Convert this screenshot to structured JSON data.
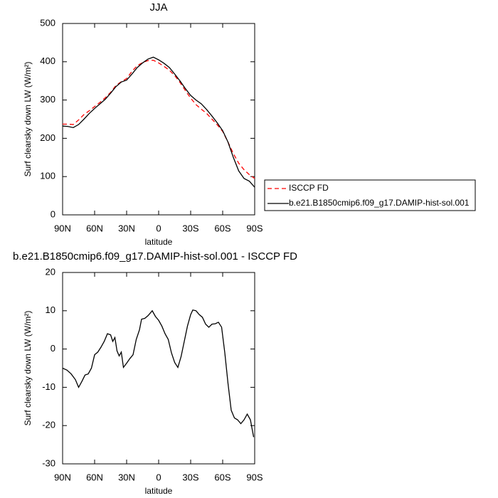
{
  "chart_data": [
    {
      "type": "line",
      "title": "JJA",
      "xlabel": "latitude",
      "ylabel": "Surf clearsky down LW (W/m²)",
      "x": [
        90,
        85,
        80,
        75,
        70,
        65,
        60,
        55,
        50,
        45,
        40,
        35,
        30,
        25,
        20,
        15,
        10,
        5,
        0,
        -5,
        -10,
        -15,
        -20,
        -25,
        -30,
        -35,
        -40,
        -45,
        -50,
        -55,
        -60,
        -65,
        -70,
        -75,
        -80,
        -85,
        -90
      ],
      "series": [
        {
          "name": "ISCCP FD",
          "color": "#ff0000",
          "linestyle": "dashed",
          "values": [
            237,
            237,
            236,
            248,
            262,
            272,
            283,
            294,
            306,
            320,
            338,
            348,
            356,
            375,
            390,
            398,
            403,
            404,
            397,
            388,
            378,
            364,
            346,
            325,
            305,
            288,
            276,
            265,
            250,
            235,
            218,
            190,
            160,
            135,
            118,
            105,
            95
          ]
        },
        {
          "name": "b.e21.B1850cmip6.f09_g17.DAMIP-hist-sol.001",
          "color": "#000000",
          "linestyle": "solid",
          "values": [
            232,
            231,
            228,
            236,
            250,
            265,
            278,
            290,
            302,
            318,
            335,
            347,
            352,
            368,
            385,
            397,
            407,
            412,
            405,
            396,
            385,
            368,
            350,
            330,
            312,
            300,
            290,
            275,
            258,
            240,
            220,
            190,
            150,
            115,
            95,
            88,
            72
          ]
        }
      ],
      "xlim": [
        90,
        -90
      ],
      "xticks": [
        {
          "value": 90,
          "label": "90N"
        },
        {
          "value": 60,
          "label": "60N"
        },
        {
          "value": 30,
          "label": "30N"
        },
        0,
        {
          "value": -30,
          "label": "30S"
        },
        {
          "value": -60,
          "label": "60S"
        },
        {
          "value": -90,
          "label": "90S"
        }
      ],
      "ylim": [
        0,
        500
      ],
      "yticks": [
        0,
        100,
        200,
        300,
        400,
        500
      ],
      "legend": "outside-right"
    },
    {
      "type": "line",
      "title": "b.e21.B1850cmip6.f09_g17.DAMIP-hist-sol.001 - ISCCP FD",
      "xlabel": "latitude",
      "ylabel": "Surf clearsky down LW (W/m²)",
      "x": [
        90,
        86,
        82,
        78,
        75,
        72,
        69,
        66,
        63,
        60,
        57,
        54,
        51,
        48,
        45,
        43,
        41,
        39,
        37,
        35,
        33,
        30,
        27,
        24,
        21,
        18,
        16,
        13,
        10,
        6,
        3,
        0,
        -3,
        -6,
        -9,
        -12,
        -15,
        -18,
        -21,
        -24,
        -27,
        -30,
        -32,
        -35,
        -38,
        -41,
        -44,
        -47,
        -50,
        -53,
        -56,
        -59,
        -62,
        -65,
        -68,
        -71,
        -74,
        -77,
        -80,
        -83,
        -86,
        -89
      ],
      "values": [
        -5,
        -5.5,
        -6.5,
        -8,
        -10,
        -8.5,
        -6.8,
        -6.5,
        -5,
        -1.5,
        -0.8,
        0.5,
        2,
        4,
        3.7,
        2,
        3,
        -0.5,
        -1.8,
        -0.8,
        -4.8,
        -3.7,
        -2.5,
        -1.5,
        2.5,
        5,
        7.8,
        8,
        8.7,
        10,
        8.5,
        7.5,
        6,
        4,
        2.5,
        -1,
        -3.5,
        -4.8,
        -2,
        2,
        6,
        9,
        10.2,
        10,
        9,
        8.3,
        6.5,
        5.7,
        6.5,
        6.6,
        7,
        5.7,
        -1,
        -9,
        -16,
        -18,
        -18.5,
        -19.5,
        -18.5,
        -17,
        -18.5,
        -23
      ],
      "color": "#000000",
      "xlim": [
        90,
        -90
      ],
      "xticks": [
        {
          "value": 90,
          "label": "90N"
        },
        {
          "value": 60,
          "label": "60N"
        },
        {
          "value": 30,
          "label": "30N"
        },
        0,
        {
          "value": -30,
          "label": "30S"
        },
        {
          "value": -60,
          "label": "60S"
        },
        {
          "value": -90,
          "label": "90S"
        }
      ],
      "ylim": [
        -30,
        20
      ],
      "yticks": [
        -30,
        -20,
        -10,
        0,
        10,
        20
      ]
    }
  ]
}
